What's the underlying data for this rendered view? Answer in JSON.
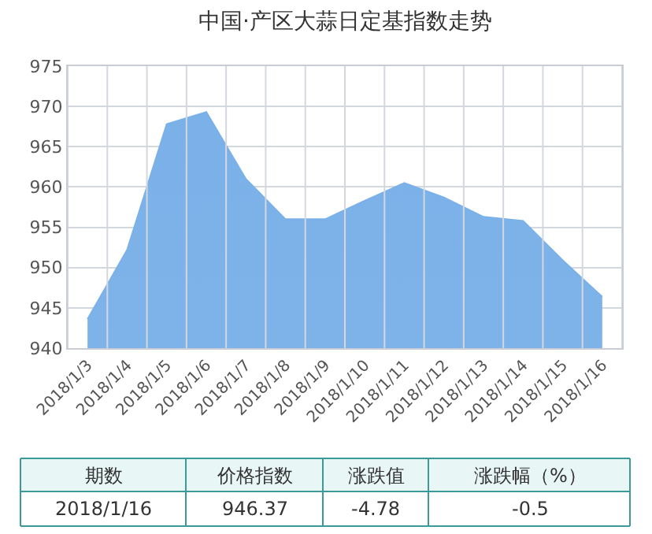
{
  "chart_data": {
    "type": "area",
    "title": "中国·产区大蒜日定基指数走势",
    "categories": [
      "2018/1/3",
      "2018/1/4",
      "2018/1/5",
      "2018/1/6",
      "2018/1/7",
      "2018/1/8",
      "2018/1/9",
      "2018/1/10",
      "2018/1/11",
      "2018/1/12",
      "2018/1/13",
      "2018/1/14",
      "2018/1/15",
      "2018/1/16"
    ],
    "series": [
      {
        "color": "#7ab1e8",
        "values": [
          943.6,
          952.2,
          967.8,
          969.3,
          961.0,
          956.0,
          956.0,
          958.3,
          960.5,
          958.7,
          956.3,
          955.8,
          950.9,
          946.37
        ]
      }
    ],
    "ylim": [
      940,
      975
    ],
    "yticks": [
      940,
      945,
      950,
      955,
      960,
      965,
      970,
      975
    ],
    "grid": true,
    "marker": "none",
    "line_style": "solid",
    "annotations": [
      "期数",
      "价格指数",
      "涨跌值",
      "涨跌幅（%）",
      "2018/1/16",
      "946.37",
      "-4.78",
      "-0.5"
    ]
  }
}
